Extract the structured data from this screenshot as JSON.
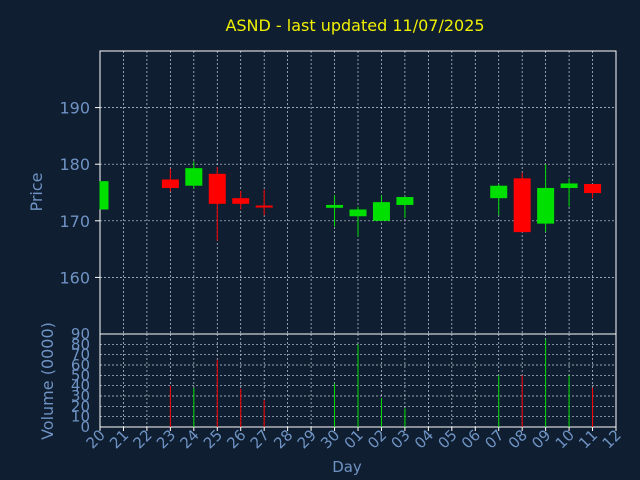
{
  "chart_data": {
    "type": "candlestick",
    "title": "ASND - last updated 11/07/2025",
    "xlabel": "Day",
    "grid": true,
    "colors": {
      "background": "#0f1e30",
      "frame": "#ffffff",
      "title": "#f0f000",
      "axis_text": "#6f93c4",
      "up": "#00e000",
      "down": "#ff0000"
    },
    "price_panel": {
      "ylabel": "Price",
      "ylim": [
        150,
        200
      ],
      "yticks": [
        160,
        170,
        180,
        190
      ]
    },
    "volume_panel": {
      "ylabel": "Volume (0000)",
      "ylim": [
        0,
        90
      ],
      "yticks": [
        0,
        10,
        20,
        30,
        40,
        50,
        60,
        70,
        80,
        90
      ]
    },
    "x_tick_labels": [
      "20",
      "21",
      "22",
      "23",
      "24",
      "25",
      "26",
      "27",
      "28",
      "29",
      "30",
      "01",
      "02",
      "03",
      "04",
      "05",
      "06",
      "07",
      "08",
      "09",
      "10",
      "11",
      "12"
    ],
    "candles": [
      {
        "day": "20",
        "open": 172.0,
        "high": 177.0,
        "low": 172.0,
        "close": 177.0,
        "volume": 0
      },
      {
        "day": "23",
        "open": 177.3,
        "high": 179.2,
        "low": 175.2,
        "close": 175.8,
        "volume": 40
      },
      {
        "day": "24",
        "open": 176.2,
        "high": 180.5,
        "low": 175.7,
        "close": 179.3,
        "volume": 38
      },
      {
        "day": "25",
        "open": 178.3,
        "high": 179.5,
        "low": 166.5,
        "close": 173.0,
        "volume": 65
      },
      {
        "day": "26",
        "open": 174.0,
        "high": 175.3,
        "low": 172.0,
        "close": 173.0,
        "volume": 37
      },
      {
        "day": "27",
        "open": 172.7,
        "high": 175.5,
        "low": 171.0,
        "close": 172.4,
        "volume": 26
      },
      {
        "day": "30",
        "open": 172.3,
        "high": 174.5,
        "low": 169.0,
        "close": 172.8,
        "volume": 42
      },
      {
        "day": "01",
        "open": 170.8,
        "high": 172.5,
        "low": 167.2,
        "close": 172.0,
        "volume": 80
      },
      {
        "day": "02",
        "open": 170.0,
        "high": 174.5,
        "low": 170.0,
        "close": 173.3,
        "volume": 28
      },
      {
        "day": "03",
        "open": 172.8,
        "high": 174.3,
        "low": 170.5,
        "close": 174.2,
        "volume": 18
      },
      {
        "day": "07",
        "open": 174.0,
        "high": 176.5,
        "low": 171.0,
        "close": 176.2,
        "volume": 50
      },
      {
        "day": "08",
        "open": 177.5,
        "high": 178.5,
        "low": 168.0,
        "close": 168.0,
        "volume": 50
      },
      {
        "day": "09",
        "open": 169.5,
        "high": 180.0,
        "low": 168.0,
        "close": 175.8,
        "volume": 85
      },
      {
        "day": "10",
        "open": 175.8,
        "high": 177.5,
        "low": 172.5,
        "close": 176.6,
        "volume": 50
      },
      {
        "day": "11",
        "open": 176.5,
        "high": 176.5,
        "low": 174.0,
        "close": 174.9,
        "volume": 38
      }
    ]
  }
}
